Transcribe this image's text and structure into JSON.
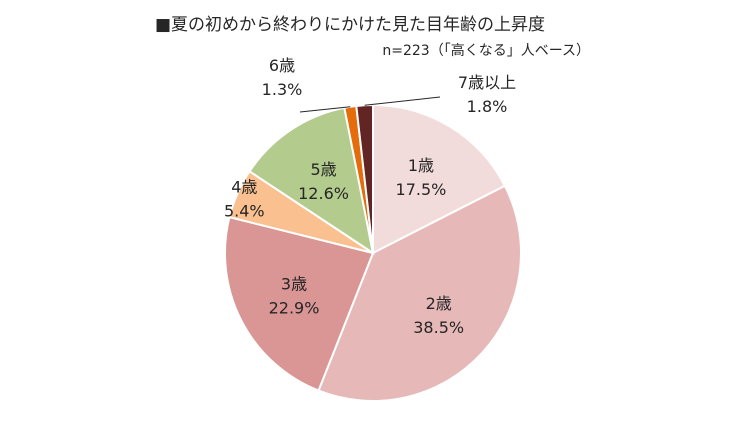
{
  "chart_data": {
    "type": "pie",
    "title": "■夏の初めから終わりにかけた見た目年齢の上昇度",
    "subtitle": "n=223（「高くなる」人ベース）",
    "start_angle_deg": 0,
    "direction": "clockwise",
    "slices": [
      {
        "label": "1歳",
        "value": 17.5,
        "display": "17.5%",
        "color": "#F2DCDB"
      },
      {
        "label": "2歳",
        "value": 38.5,
        "display": "38.5%",
        "color": "#E6B9B8"
      },
      {
        "label": "3歳",
        "value": 22.9,
        "display": "22.9%",
        "color": "#D99694"
      },
      {
        "label": "4歳",
        "value": 5.4,
        "display": "5.4%",
        "color": "#FAC090"
      },
      {
        "label": "5歳",
        "value": 12.6,
        "display": "12.6%",
        "color": "#B3CC8E"
      },
      {
        "label": "6歳",
        "value": 1.3,
        "display": "1.3%",
        "color": "#E46C0A"
      },
      {
        "label": "7歳以上",
        "value": 1.8,
        "display": "1.8%",
        "color": "#632523"
      }
    ]
  }
}
